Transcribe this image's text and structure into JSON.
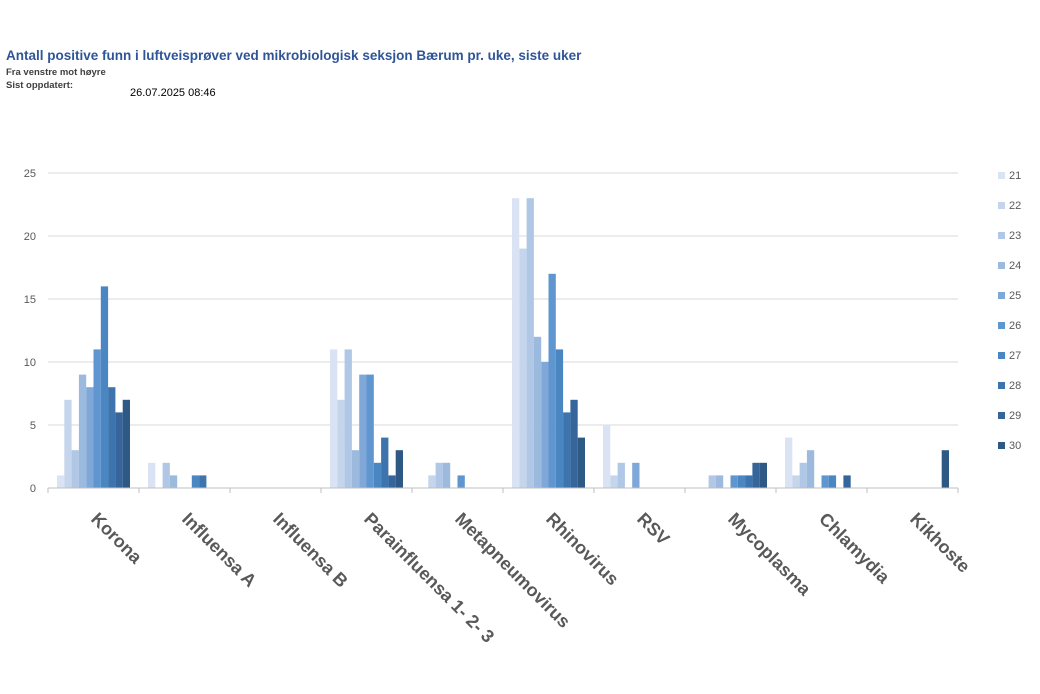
{
  "header": {
    "title": "Antall positive funn i luftveisprøver ved mikrobiologisk seksjon Bærum pr. uke, siste uker",
    "subtitle": "Fra venstre mot høyre",
    "updated_label": "Sist oppdatert:",
    "updated_value": "26.07.2025 08:46"
  },
  "chart_data": {
    "type": "bar",
    "categories": [
      "Korona",
      "Influensa A",
      "Influensa B",
      "Parainfluensa 1- 2- 3",
      "Metapneumovirus",
      "Rhinovirus",
      "RSV",
      "Mycoplasma",
      "Chlamydia",
      "Kikhoste"
    ],
    "series": [
      {
        "name": "21",
        "color": "#dae3f3",
        "values": [
          1,
          2,
          0,
          11,
          0,
          23,
          5,
          0,
          4,
          0
        ]
      },
      {
        "name": "22",
        "color": "#c5d5ec",
        "values": [
          7,
          0,
          0,
          7,
          1,
          19,
          1,
          0,
          1,
          0
        ]
      },
      {
        "name": "23",
        "color": "#b0c7e6",
        "values": [
          3,
          2,
          0,
          11,
          2,
          23,
          2,
          1,
          2,
          0
        ]
      },
      {
        "name": "24",
        "color": "#9cb9de",
        "values": [
          9,
          1,
          0,
          3,
          2,
          12,
          0,
          1,
          3,
          0
        ]
      },
      {
        "name": "25",
        "color": "#7fa8d8",
        "values": [
          8,
          0,
          0,
          9,
          0,
          10,
          2,
          0,
          0,
          0
        ]
      },
      {
        "name": "26",
        "color": "#5f96cf",
        "values": [
          11,
          0,
          0,
          9,
          1,
          17,
          0,
          1,
          1,
          0
        ]
      },
      {
        "name": "27",
        "color": "#4a86c2",
        "values": [
          16,
          1,
          0,
          2,
          0,
          11,
          0,
          1,
          1,
          0
        ]
      },
      {
        "name": "28",
        "color": "#3d74ad",
        "values": [
          8,
          1,
          0,
          4,
          0,
          6,
          0,
          1,
          0,
          0
        ]
      },
      {
        "name": "29",
        "color": "#35659a",
        "values": [
          6,
          0,
          0,
          1,
          0,
          7,
          0,
          2,
          1,
          0
        ]
      },
      {
        "name": "30",
        "color": "#2e5985",
        "values": [
          7,
          0,
          0,
          3,
          0,
          4,
          0,
          2,
          0,
          3
        ]
      }
    ],
    "yticks": [
      0,
      5,
      10,
      15,
      20,
      25
    ],
    "ylim": [
      0,
      25
    ],
    "grid": true,
    "legend_position": "right"
  }
}
